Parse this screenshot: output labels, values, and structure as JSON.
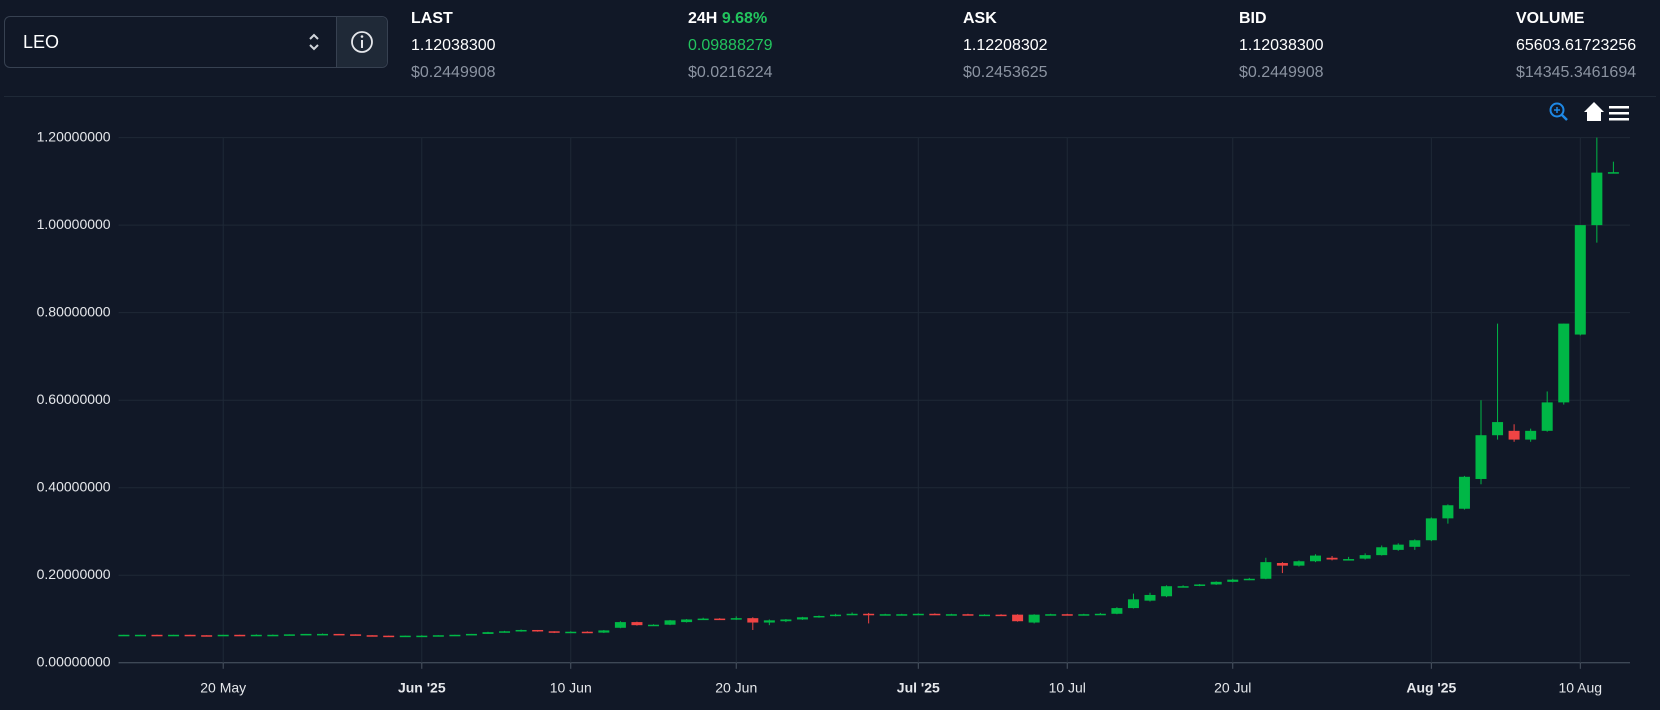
{
  "header": {
    "symbol": "LEO",
    "stats": [
      {
        "label": "LAST",
        "value": "1.12038300",
        "usd": "$0.2449908"
      },
      {
        "label": "24H",
        "change": "9.68%",
        "value": "0.09888279",
        "usd": "$0.0216224"
      },
      {
        "label": "ASK",
        "value": "1.12208302",
        "usd": "$0.2453625"
      },
      {
        "label": "BID",
        "value": "1.12038300",
        "usd": "$0.2449908"
      },
      {
        "label": "VOLUME",
        "value": "65603.61723256",
        "usd": "$14345.3461694"
      }
    ]
  },
  "chart_data": {
    "type": "candlestick",
    "up_color": "#00b746",
    "down_color": "#ef4444",
    "grid": true,
    "x": [
      "14 May",
      "15 May",
      "16 May",
      "17 May",
      "18 May",
      "19 May",
      "20 May",
      "21 May",
      "22 May",
      "23 May",
      "24 May",
      "25 May",
      "26 May",
      "27 May",
      "28 May",
      "29 May",
      "30 May",
      "31 May",
      "1 Jun",
      "2 Jun",
      "3 Jun",
      "4 Jun",
      "5 Jun",
      "6 Jun",
      "7 Jun",
      "8 Jun",
      "9 Jun",
      "10 Jun",
      "11 Jun",
      "12 Jun",
      "13 Jun",
      "14 Jun",
      "15 Jun",
      "16 Jun",
      "17 Jun",
      "18 Jun",
      "19 Jun",
      "20 Jun",
      "21 Jun",
      "22 Jun",
      "23 Jun",
      "24 Jun",
      "25 Jun",
      "26 Jun",
      "27 Jun",
      "28 Jun",
      "29 Jun",
      "30 Jun",
      "1 Jul",
      "2 Jul",
      "3 Jul",
      "4 Jul",
      "5 Jul",
      "6 Jul",
      "7 Jul",
      "8 Jul",
      "9 Jul",
      "10 Jul",
      "11 Jul",
      "12 Jul",
      "13 Jul",
      "14 Jul",
      "15 Jul",
      "16 Jul",
      "17 Jul",
      "18 Jul",
      "19 Jul",
      "20 Jul",
      "21 Jul",
      "22 Jul",
      "23 Jul",
      "24 Jul",
      "25 Jul",
      "26 Jul",
      "27 Jul",
      "28 Jul",
      "29 Jul",
      "30 Jul",
      "31 Jul",
      "1 Aug",
      "2 Aug",
      "3 Aug",
      "4 Aug",
      "5 Aug",
      "6 Aug",
      "7 Aug",
      "8 Aug",
      "9 Aug",
      "10 Aug",
      "11 Aug",
      "12 Aug"
    ],
    "open": [
      0.063,
      0.064,
      0.064,
      0.063,
      0.064,
      0.063,
      0.062,
      0.064,
      0.063,
      0.064,
      0.064,
      0.065,
      0.066,
      0.066,
      0.065,
      0.063,
      0.062,
      0.061,
      0.062,
      0.062,
      0.063,
      0.064,
      0.066,
      0.07,
      0.072,
      0.075,
      0.072,
      0.069,
      0.071,
      0.069,
      0.08,
      0.093,
      0.085,
      0.087,
      0.093,
      0.099,
      0.101,
      0.1,
      0.102,
      0.092,
      0.095,
      0.099,
      0.104,
      0.107,
      0.11,
      0.112,
      0.11,
      0.111,
      0.111,
      0.112,
      0.111,
      0.111,
      0.11,
      0.11,
      0.11,
      0.092,
      0.11,
      0.111,
      0.11,
      0.111,
      0.112,
      0.125,
      0.142,
      0.152,
      0.175,
      0.176,
      0.179,
      0.185,
      0.19,
      0.192,
      0.228,
      0.222,
      0.232,
      0.24,
      0.236,
      0.238,
      0.246,
      0.258,
      0.265,
      0.28,
      0.33,
      0.352,
      0.42,
      0.52,
      0.53,
      0.51,
      0.53,
      0.595,
      0.75,
      1.0,
      1.12
    ],
    "high": [
      0.064,
      0.064,
      0.064,
      0.064,
      0.064,
      0.063,
      0.064,
      0.064,
      0.065,
      0.065,
      0.065,
      0.066,
      0.067,
      0.066,
      0.065,
      0.063,
      0.062,
      0.062,
      0.063,
      0.063,
      0.064,
      0.066,
      0.071,
      0.073,
      0.076,
      0.075,
      0.072,
      0.072,
      0.072,
      0.075,
      0.095,
      0.094,
      0.088,
      0.098,
      0.1,
      0.103,
      0.102,
      0.106,
      0.104,
      0.099,
      0.1,
      0.105,
      0.108,
      0.112,
      0.115,
      0.114,
      0.112,
      0.112,
      0.113,
      0.113,
      0.112,
      0.112,
      0.111,
      0.111,
      0.111,
      0.111,
      0.112,
      0.112,
      0.112,
      0.114,
      0.127,
      0.158,
      0.16,
      0.177,
      0.177,
      0.18,
      0.186,
      0.192,
      0.194,
      0.24,
      0.23,
      0.234,
      0.248,
      0.244,
      0.242,
      0.25,
      0.268,
      0.273,
      0.282,
      0.332,
      0.362,
      0.427,
      0.6,
      0.775,
      0.545,
      0.535,
      0.62,
      0.775,
      1.0,
      1.2,
      1.145
    ],
    "low": [
      0.063,
      0.063,
      0.063,
      0.063,
      0.062,
      0.062,
      0.062,
      0.063,
      0.063,
      0.064,
      0.064,
      0.065,
      0.065,
      0.064,
      0.063,
      0.061,
      0.06,
      0.061,
      0.061,
      0.062,
      0.062,
      0.064,
      0.066,
      0.069,
      0.071,
      0.071,
      0.068,
      0.068,
      0.068,
      0.068,
      0.079,
      0.085,
      0.084,
      0.086,
      0.092,
      0.098,
      0.098,
      0.098,
      0.075,
      0.086,
      0.093,
      0.098,
      0.103,
      0.106,
      0.109,
      0.09,
      0.109,
      0.11,
      0.11,
      0.11,
      0.11,
      0.109,
      0.109,
      0.108,
      0.094,
      0.09,
      0.109,
      0.109,
      0.109,
      0.11,
      0.111,
      0.124,
      0.14,
      0.15,
      0.173,
      0.175,
      0.178,
      0.184,
      0.189,
      0.191,
      0.205,
      0.22,
      0.23,
      0.234,
      0.235,
      0.236,
      0.245,
      0.256,
      0.258,
      0.278,
      0.318,
      0.35,
      0.408,
      0.51,
      0.505,
      0.505,
      0.528,
      0.59,
      0.748,
      0.96,
      1.118
    ],
    "close": [
      0.064,
      0.064,
      0.063,
      0.064,
      0.063,
      0.062,
      0.064,
      0.063,
      0.064,
      0.064,
      0.065,
      0.066,
      0.066,
      0.065,
      0.063,
      0.062,
      0.061,
      0.062,
      0.062,
      0.063,
      0.064,
      0.066,
      0.07,
      0.072,
      0.075,
      0.072,
      0.069,
      0.071,
      0.069,
      0.074,
      0.093,
      0.086,
      0.087,
      0.097,
      0.099,
      0.101,
      0.099,
      0.102,
      0.092,
      0.097,
      0.099,
      0.104,
      0.107,
      0.11,
      0.112,
      0.11,
      0.111,
      0.111,
      0.112,
      0.111,
      0.111,
      0.11,
      0.11,
      0.109,
      0.095,
      0.11,
      0.111,
      0.11,
      0.111,
      0.112,
      0.125,
      0.145,
      0.155,
      0.175,
      0.175,
      0.179,
      0.185,
      0.19,
      0.192,
      0.23,
      0.222,
      0.232,
      0.245,
      0.236,
      0.237,
      0.246,
      0.264,
      0.27,
      0.28,
      0.33,
      0.36,
      0.425,
      0.52,
      0.55,
      0.51,
      0.53,
      0.595,
      0.775,
      1.0,
      1.12,
      1.121
    ],
    "ylim": [
      0,
      1.2
    ],
    "yticks": [
      {
        "value": 0,
        "label": "0.00000000"
      },
      {
        "value": 0.2,
        "label": "0.20000000"
      },
      {
        "value": 0.4,
        "label": "0.40000000"
      },
      {
        "value": 0.6,
        "label": "0.60000000"
      },
      {
        "value": 0.8,
        "label": "0.80000000"
      },
      {
        "value": 1.0,
        "label": "1.00000000"
      },
      {
        "value": 1.2,
        "label": "1.20000000"
      }
    ],
    "xticks": [
      {
        "value": "20 May",
        "label": "20 May"
      },
      {
        "value": "1 Jun",
        "label": "Jun '25"
      },
      {
        "value": "10 Jun",
        "label": "10 Jun"
      },
      {
        "value": "20 Jun",
        "label": "20 Jun"
      },
      {
        "value": "1 Jul",
        "label": "Jul '25"
      },
      {
        "value": "10 Jul",
        "label": "10 Jul"
      },
      {
        "value": "20 Jul",
        "label": "20 Jul"
      },
      {
        "value": "1 Aug",
        "label": "Aug '25"
      },
      {
        "value": "10 Aug",
        "label": "10 Aug"
      }
    ]
  }
}
